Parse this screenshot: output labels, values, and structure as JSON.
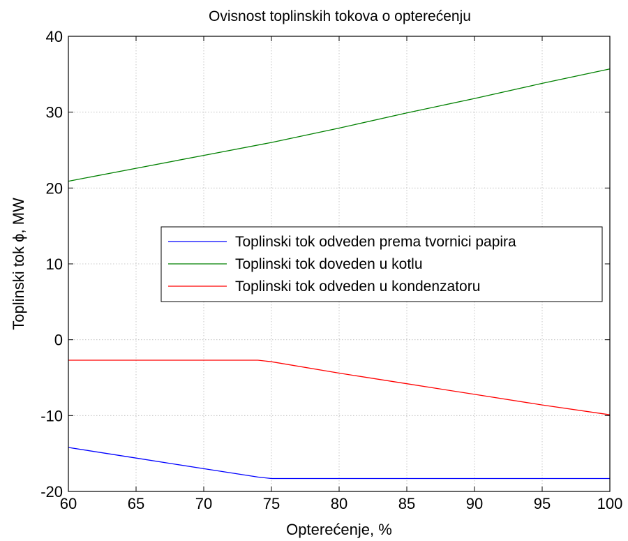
{
  "chart_data": {
    "type": "line",
    "title": "Ovisnost toplinskih tokova o opterećenju",
    "xlabel": "Opterećenje, %",
    "ylabel": "Toplinski tok ϕ, MW",
    "xlim": [
      60,
      100
    ],
    "ylim": [
      -20,
      40
    ],
    "xticks": [
      "60",
      "65",
      "70",
      "75",
      "80",
      "85",
      "90",
      "95",
      "100"
    ],
    "yticks": [
      "-20",
      "-10",
      "0",
      "10",
      "20",
      "30",
      "40"
    ],
    "grid": true,
    "legend_position": "center-right",
    "series": [
      {
        "name": "Toplinski tok odveden prema tvornici papira",
        "color": "#0000ff",
        "x": [
          60,
          65,
          70,
          74,
          75,
          80,
          85,
          90,
          95,
          100
        ],
        "y": [
          -14.2,
          -15.6,
          -17.0,
          -18.1,
          -18.3,
          -18.3,
          -18.3,
          -18.3,
          -18.3,
          -18.3
        ]
      },
      {
        "name": "Toplinski tok doveden u kotlu",
        "color": "#008000",
        "x": [
          60,
          65,
          70,
          75,
          80,
          85,
          90,
          95,
          100
        ],
        "y": [
          20.9,
          22.6,
          24.3,
          26.0,
          27.9,
          29.9,
          31.8,
          33.8,
          35.7
        ]
      },
      {
        "name": "Toplinski tok odveden u kondenzatoru",
        "color": "#ff0000",
        "x": [
          60,
          65,
          70,
          74,
          75,
          80,
          85,
          90,
          95,
          100
        ],
        "y": [
          -2.7,
          -2.7,
          -2.7,
          -2.7,
          -2.9,
          -4.4,
          -5.8,
          -7.2,
          -8.6,
          -9.9
        ]
      }
    ]
  }
}
